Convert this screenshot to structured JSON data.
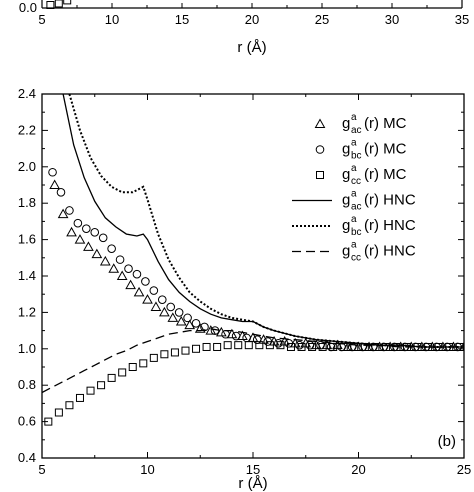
{
  "chart_data": [
    {
      "panel": "top",
      "type": "scatter",
      "x_ticks": [
        "5",
        "10",
        "15",
        "20",
        "25",
        "30",
        "35"
      ],
      "y_ticks": [
        "0.0"
      ],
      "xlabel": "r (Å)",
      "xlim": [
        5,
        35
      ],
      "series": [
        {
          "marker": "square",
          "x": [
            5.6,
            6.2,
            6.8
          ],
          "y": [
            0.03,
            0.06,
            0.1
          ]
        }
      ]
    },
    {
      "panel": "bottom",
      "type": "line",
      "panel_label": "(b)",
      "xlabel": "r (Å)",
      "xlim": [
        5,
        25
      ],
      "ylim": [
        0.4,
        2.4
      ],
      "x_ticks": [
        "5",
        "10",
        "15",
        "20",
        "25"
      ],
      "y_ticks": [
        "0.4",
        "0.6",
        "0.8",
        "1.0",
        "1.2",
        "1.4",
        "1.6",
        "1.8",
        "2.0",
        "2.2",
        "2.4"
      ],
      "legend_position": "right",
      "series": [
        {
          "name": "g^a_ac(r) MC",
          "marker": "triangle",
          "style": "markers",
          "x": [
            5.6,
            6.0,
            6.4,
            6.8,
            7.2,
            7.6,
            8.0,
            8.4,
            8.8,
            9.2,
            9.6,
            10.0,
            10.4,
            10.8,
            11.2,
            11.6,
            12.0,
            12.5,
            13.0,
            13.5,
            14.0,
            14.5,
            15.0,
            15.5,
            16.0,
            16.5,
            17.0,
            17.5,
            18.0,
            18.5,
            19.0,
            19.5,
            20.0,
            20.5,
            21.0,
            21.5,
            22.0,
            22.5,
            23.0,
            23.5,
            24.0,
            24.5,
            25.0
          ],
          "y": [
            1.9,
            1.74,
            1.64,
            1.6,
            1.56,
            1.52,
            1.48,
            1.44,
            1.4,
            1.35,
            1.31,
            1.27,
            1.23,
            1.2,
            1.17,
            1.15,
            1.13,
            1.11,
            1.1,
            1.09,
            1.08,
            1.07,
            1.06,
            1.05,
            1.04,
            1.04,
            1.03,
            1.03,
            1.02,
            1.02,
            1.02,
            1.01,
            1.01,
            1.01,
            1.01,
            1.01,
            1.01,
            1.01,
            1.01,
            1.01,
            1.01,
            1.01,
            1.01
          ]
        },
        {
          "name": "g^a_bc(r) MC",
          "marker": "circle",
          "style": "markers",
          "x": [
            5.5,
            5.9,
            6.3,
            6.7,
            7.1,
            7.5,
            7.9,
            8.3,
            8.7,
            9.1,
            9.5,
            9.9,
            10.3,
            10.7,
            11.1,
            11.5,
            11.9,
            12.3,
            12.7,
            13.2,
            13.7,
            14.2,
            14.7,
            15.2,
            15.7,
            16.2,
            16.7,
            17.2,
            17.7,
            18.2,
            18.7,
            19.2,
            19.7,
            20.2,
            20.7,
            21.2,
            21.7,
            22.2,
            22.7,
            23.2,
            23.7,
            24.2,
            24.7
          ],
          "y": [
            1.97,
            1.86,
            1.76,
            1.69,
            1.66,
            1.64,
            1.61,
            1.55,
            1.49,
            1.44,
            1.41,
            1.37,
            1.32,
            1.27,
            1.23,
            1.2,
            1.17,
            1.14,
            1.12,
            1.1,
            1.08,
            1.07,
            1.06,
            1.05,
            1.04,
            1.03,
            1.03,
            1.02,
            1.02,
            1.02,
            1.01,
            1.01,
            1.01,
            1.01,
            1.01,
            1.01,
            1.01,
            1.01,
            1.01,
            1.01,
            1.01,
            1.01,
            1.01
          ]
        },
        {
          "name": "g^a_cc(r) MC",
          "marker": "square",
          "style": "markers",
          "x": [
            5.3,
            5.8,
            6.3,
            6.8,
            7.3,
            7.8,
            8.3,
            8.8,
            9.3,
            9.8,
            10.3,
            10.8,
            11.3,
            11.8,
            12.3,
            12.8,
            13.3,
            13.8,
            14.3,
            14.8,
            15.3,
            15.8,
            16.3,
            16.8,
            17.3,
            17.8,
            18.3,
            18.8,
            19.3,
            19.8,
            20.3,
            20.8,
            21.3,
            21.8,
            22.3,
            22.8,
            23.3,
            23.8,
            24.3,
            24.8
          ],
          "y": [
            0.6,
            0.65,
            0.69,
            0.73,
            0.77,
            0.8,
            0.84,
            0.87,
            0.9,
            0.92,
            0.95,
            0.97,
            0.98,
            0.99,
            1.0,
            1.01,
            1.01,
            1.02,
            1.02,
            1.02,
            1.02,
            1.02,
            1.02,
            1.01,
            1.01,
            1.01,
            1.01,
            1.01,
            1.01,
            1.01,
            1.01,
            1.01,
            1.01,
            1.01,
            1.01,
            1.01,
            1.01,
            1.01,
            1.01,
            1.01
          ]
        },
        {
          "name": "g^a_ac(r) HNC",
          "style": "solid",
          "x": [
            6.0,
            6.5,
            7.0,
            7.5,
            8.0,
            8.5,
            9.0,
            9.5,
            9.8,
            10.0,
            10.5,
            11.0,
            11.5,
            12.0,
            12.5,
            13.0,
            13.5,
            14.0,
            14.5,
            15.0,
            15.5,
            16.0,
            17.0,
            18.0,
            19.0,
            20.0,
            21.0,
            22.0,
            23.0,
            24.0,
            25.0
          ],
          "y": [
            2.4,
            2.12,
            1.94,
            1.81,
            1.72,
            1.67,
            1.63,
            1.62,
            1.63,
            1.6,
            1.48,
            1.38,
            1.31,
            1.26,
            1.22,
            1.19,
            1.17,
            1.16,
            1.15,
            1.15,
            1.12,
            1.1,
            1.07,
            1.05,
            1.04,
            1.03,
            1.02,
            1.02,
            1.01,
            1.01,
            1.01
          ]
        },
        {
          "name": "g^a_bc(r) HNC",
          "style": "dotted",
          "x": [
            6.3,
            6.8,
            7.3,
            7.8,
            8.3,
            8.8,
            9.3,
            9.8,
            10.0,
            10.5,
            11.0,
            11.5,
            12.0,
            12.5,
            13.0,
            13.5,
            14.0,
            14.5,
            15.0,
            15.5,
            16.0,
            17.0,
            18.0,
            19.0,
            20.0,
            21.0,
            22.0,
            23.0,
            24.0,
            25.0
          ],
          "y": [
            2.4,
            2.2,
            2.05,
            1.95,
            1.89,
            1.86,
            1.86,
            1.89,
            1.82,
            1.63,
            1.49,
            1.39,
            1.31,
            1.26,
            1.22,
            1.19,
            1.17,
            1.16,
            1.15,
            1.12,
            1.1,
            1.07,
            1.05,
            1.04,
            1.03,
            1.02,
            1.02,
            1.01,
            1.01,
            1.01
          ]
        },
        {
          "name": "g^a_cc(r) HNC",
          "style": "dashed",
          "x": [
            5.0,
            5.5,
            6.0,
            6.5,
            7.0,
            7.5,
            8.0,
            8.5,
            9.0,
            9.5,
            10.0,
            10.5,
            11.0,
            11.5,
            12.0,
            12.5,
            13.0,
            13.5,
            14.0,
            14.5,
            15.0,
            15.5,
            16.0,
            17.0,
            18.0,
            19.0,
            20.0,
            21.0,
            22.0,
            23.0,
            24.0,
            25.0
          ],
          "y": [
            0.76,
            0.79,
            0.82,
            0.85,
            0.88,
            0.91,
            0.94,
            0.97,
            0.99,
            1.02,
            1.04,
            1.06,
            1.08,
            1.09,
            1.1,
            1.1,
            1.11,
            1.1,
            1.1,
            1.09,
            1.08,
            1.07,
            1.06,
            1.05,
            1.04,
            1.03,
            1.02,
            1.02,
            1.01,
            1.01,
            1.01,
            1.01
          ]
        }
      ],
      "legend": [
        {
          "base": "g",
          "sup": "a",
          "sub": "ac",
          "suffix": "(r) MC",
          "symbol": "triangle"
        },
        {
          "base": "g",
          "sup": "a",
          "sub": "bc",
          "suffix": "(r) MC",
          "symbol": "circle"
        },
        {
          "base": "g",
          "sup": "a",
          "sub": "cc",
          "suffix": "(r) MC",
          "symbol": "square"
        },
        {
          "base": "g",
          "sup": "a",
          "sub": "ac",
          "suffix": "(r) HNC",
          "symbol": "solid"
        },
        {
          "base": "g",
          "sup": "a",
          "sub": "bc",
          "suffix": "(r) HNC",
          "symbol": "dotted"
        },
        {
          "base": "g",
          "sup": "a",
          "sub": "cc",
          "suffix": "(r) HNC",
          "symbol": "dashed"
        }
      ]
    }
  ]
}
